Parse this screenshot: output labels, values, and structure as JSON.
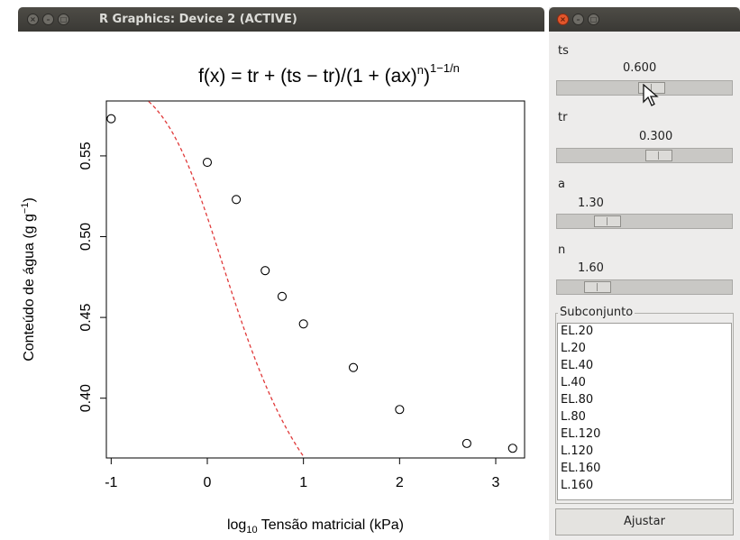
{
  "graphics_window": {
    "title": "R Graphics: Device 2 (ACTIVE)",
    "plot_title_parts": {
      "lhs": "f(x) = tr + (ts − tr)/(1 + (ax)",
      "inner_exp": "n",
      "close": ")",
      "outer_exp": "1−1/n"
    }
  },
  "chart_data": {
    "type": "scatter",
    "xlabel_parts": {
      "log": "log",
      "sub": "10",
      "rest": " Tensão matricial (kPa)"
    },
    "ylabel_parts": {
      "main": "Conteúdo de água (g g",
      "sup": "−1",
      "close": ")"
    },
    "xlim": [
      -1.05,
      3.3
    ],
    "ylim": [
      0.363,
      0.584
    ],
    "xticks": [
      "-1",
      "0",
      "1",
      "2",
      "3"
    ],
    "yticks": [
      "0.40",
      "0.45",
      "0.50",
      "0.55"
    ],
    "points": [
      {
        "x": -1.0,
        "y": 0.573
      },
      {
        "x": 0.0,
        "y": 0.546
      },
      {
        "x": 0.301,
        "y": 0.523
      },
      {
        "x": 0.602,
        "y": 0.479
      },
      {
        "x": 0.778,
        "y": 0.463
      },
      {
        "x": 1.0,
        "y": 0.446
      },
      {
        "x": 1.519,
        "y": 0.419
      },
      {
        "x": 2.0,
        "y": 0.393
      },
      {
        "x": 2.699,
        "y": 0.372
      },
      {
        "x": 3.176,
        "y": 0.369
      }
    ],
    "curve": {
      "ts": 0.6,
      "tr": 0.3,
      "a": 1.3,
      "n": 1.6,
      "style": "dashed",
      "color": "#e03a3a"
    },
    "point_style": "open-circle",
    "grid": false
  },
  "panel": {
    "sliders": [
      {
        "label": "ts",
        "value_text": "0.600",
        "fraction": 0.55
      },
      {
        "label": "tr",
        "value_text": "0.300",
        "fraction": 0.6
      },
      {
        "label": "a",
        "value_text": "1.30",
        "fraction": 0.25
      },
      {
        "label": "n",
        "value_text": "1.60",
        "fraction": 0.18
      }
    ],
    "subset_label": "Subconjunto",
    "subset_items": [
      "EL.20",
      "L.20",
      "EL.40",
      "L.40",
      "EL.80",
      "L.80",
      "EL.120",
      "L.120",
      "EL.160",
      "L.160"
    ],
    "fit_button": "Ajustar"
  },
  "colors": {
    "curve": "#e03a3a",
    "titlebar": "#3f3e3a",
    "close_button": "#e2562b"
  }
}
